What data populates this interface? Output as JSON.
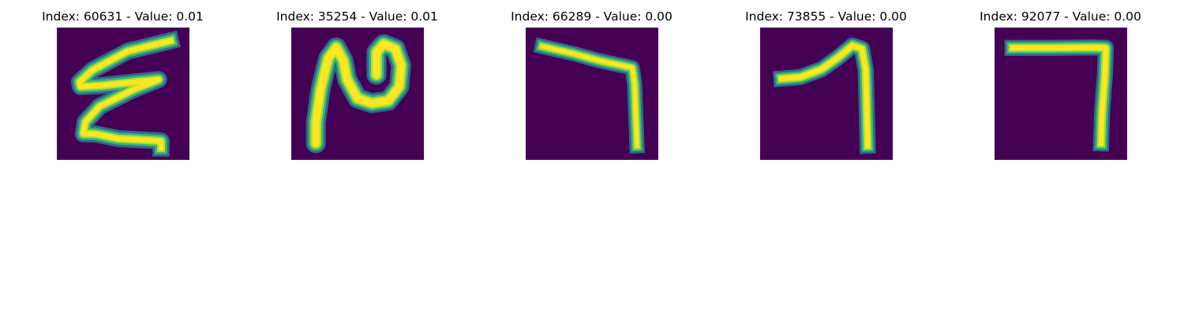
{
  "colors": {
    "background": "#440154",
    "stroke_core": "#fde725",
    "stroke_mid": "#b5de2b",
    "stroke_edge_1": "#35b779",
    "stroke_edge_2": "#21918c",
    "stroke_edge_3": "#31688e"
  },
  "panels": [
    {
      "title": "Index: 60631 - Value: 0.01",
      "glyph": "handwritten-3-rotated-icon"
    },
    {
      "title": "Index: 35254 - Value: 0.01",
      "glyph": "handwritten-n-shape-icon"
    },
    {
      "title": "Index: 66289 - Value: 0.00",
      "glyph": "handwritten-7-angle-icon"
    },
    {
      "title": "Index: 73855 - Value: 0.00",
      "glyph": "handwritten-1-hook-icon"
    },
    {
      "title": "Index: 92077 - Value: 0.00",
      "glyph": "handwritten-7-square-icon"
    }
  ]
}
